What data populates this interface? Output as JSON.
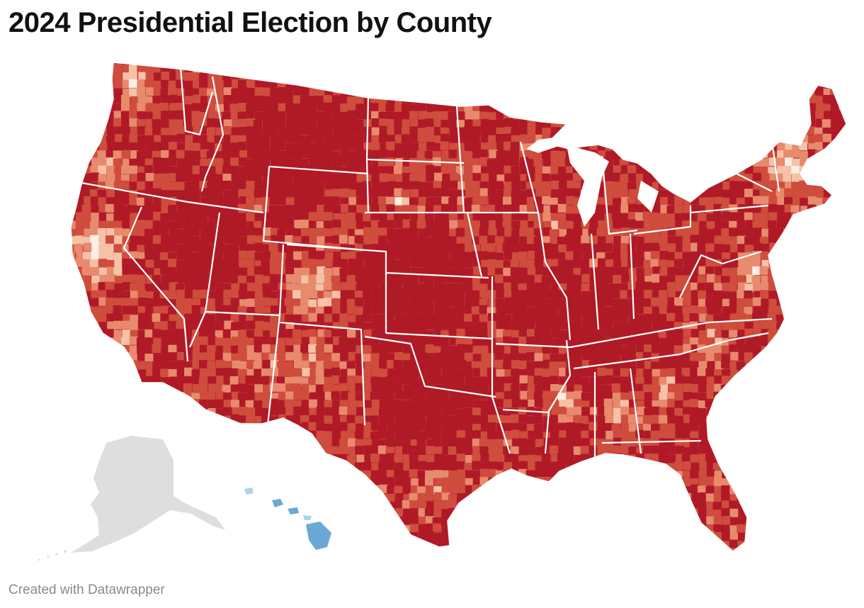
{
  "title": "2024 Presidential Election by County",
  "footer": {
    "credit": "Created with Datawrapper"
  },
  "map": {
    "type": "county choropleth",
    "colors": {
      "rep_strong": "#b01926",
      "rep_mid": "#cf4d3d",
      "rep_light": "#e88a6d",
      "rep_faint": "#f6c2a7",
      "neutral": "#fdeee6",
      "dem_faint": "#dcecf6",
      "dem_light": "#aed2ea",
      "dem_mid": "#6aa8d6",
      "dem_strong": "#1f64ad",
      "excluded": "#dedede",
      "state_border": "#ffffff"
    }
  }
}
